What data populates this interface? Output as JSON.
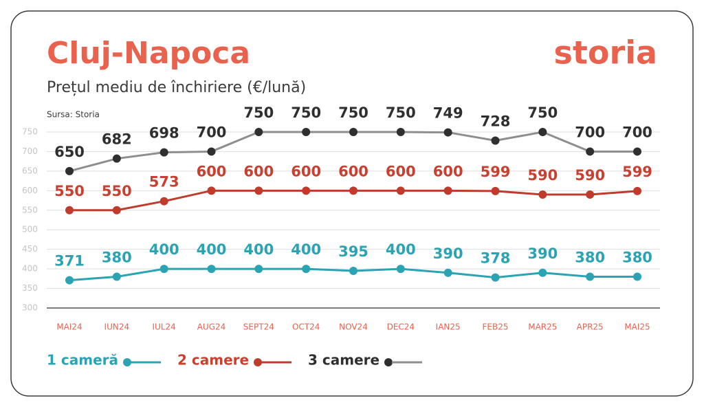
{
  "chart_data": {
    "type": "line",
    "title": "Cluj-Napoca",
    "subtitle": "Prețul mediu de închiriere (€/lună)",
    "source": "Sursa: Storia",
    "logo": "storia",
    "categories": [
      "MAI24",
      "IUN24",
      "IUL24",
      "AUG24",
      "SEPT24",
      "OCT24",
      "NOV24",
      "DEC24",
      "IAN25",
      "FEB25",
      "MAR25",
      "APR25",
      "MAI25"
    ],
    "series": [
      {
        "name": "1 cameră",
        "color": "#2aa3b3",
        "marker_color": "#2aa3b3",
        "label_color": "#2aa3b3",
        "values": [
          371,
          380,
          400,
          400,
          400,
          400,
          395,
          400,
          390,
          378,
          390,
          380,
          380
        ]
      },
      {
        "name": "2 camere",
        "color": "#bf3b2c",
        "marker_color": "#bf3b2c",
        "label_color": "#c8402f",
        "values": [
          550,
          550,
          573,
          600,
          600,
          600,
          600,
          600,
          600,
          599,
          590,
          590,
          599
        ]
      },
      {
        "name": "3 camere",
        "color": "#8e8e8e",
        "marker_color": "#2f2f2f",
        "label_color": "#2f2f2f",
        "values": [
          650,
          682,
          698,
          700,
          750,
          750,
          750,
          750,
          749,
          728,
          750,
          700,
          700
        ]
      }
    ],
    "ylim": [
      300,
      750
    ],
    "yticks": [
      300,
      350,
      400,
      450,
      500,
      550,
      600,
      650,
      700,
      750
    ],
    "grid": true
  }
}
